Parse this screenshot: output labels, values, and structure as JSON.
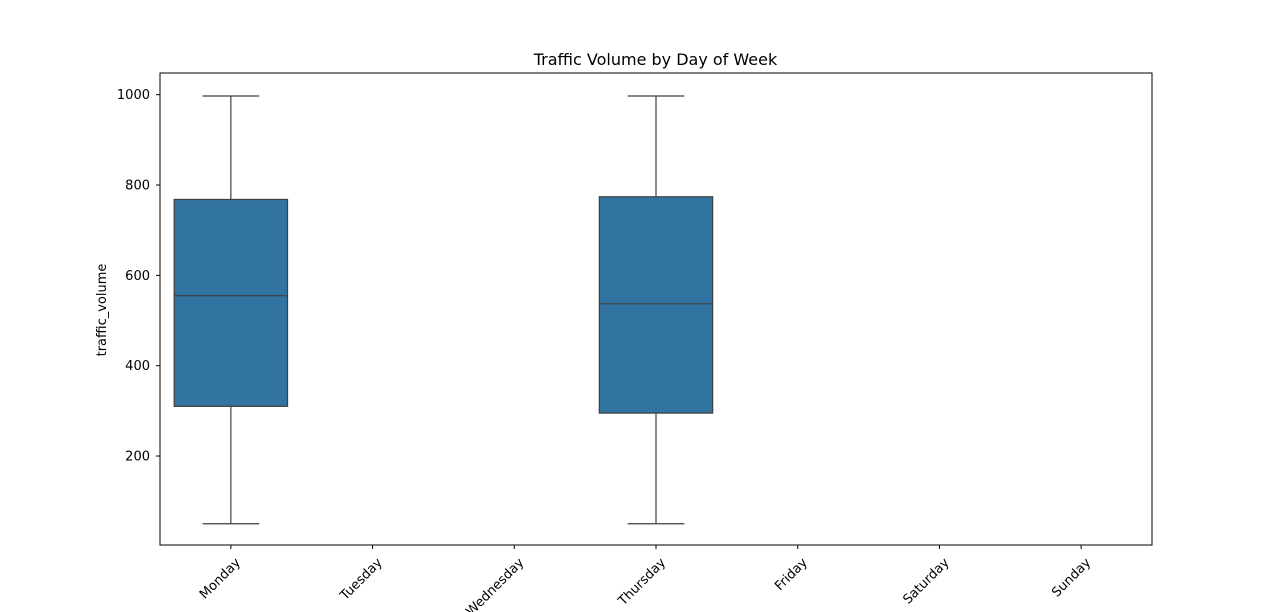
{
  "chart_data": {
    "type": "box",
    "title": "Traffic Volume by Day of Week",
    "xlabel": "",
    "ylabel": "traffic_volume",
    "categories": [
      "Monday",
      "Tuesday",
      "Wednesday",
      "Thursday",
      "Friday",
      "Saturday",
      "Sunday"
    ],
    "boxes": [
      {
        "category": "Monday",
        "whisker_low": 50,
        "q1": 310,
        "median": 555,
        "q3": 768,
        "whisker_high": 997
      },
      {
        "category": "Thursday",
        "whisker_low": 50,
        "q1": 295,
        "median": 537,
        "q3": 774,
        "whisker_high": 997
      }
    ],
    "yticks": [
      200,
      400,
      600,
      800,
      1000
    ],
    "ylim": [
      3,
      1048
    ],
    "grid": false,
    "box_color": "#3274a1",
    "line_color": "#3f3f3f"
  }
}
